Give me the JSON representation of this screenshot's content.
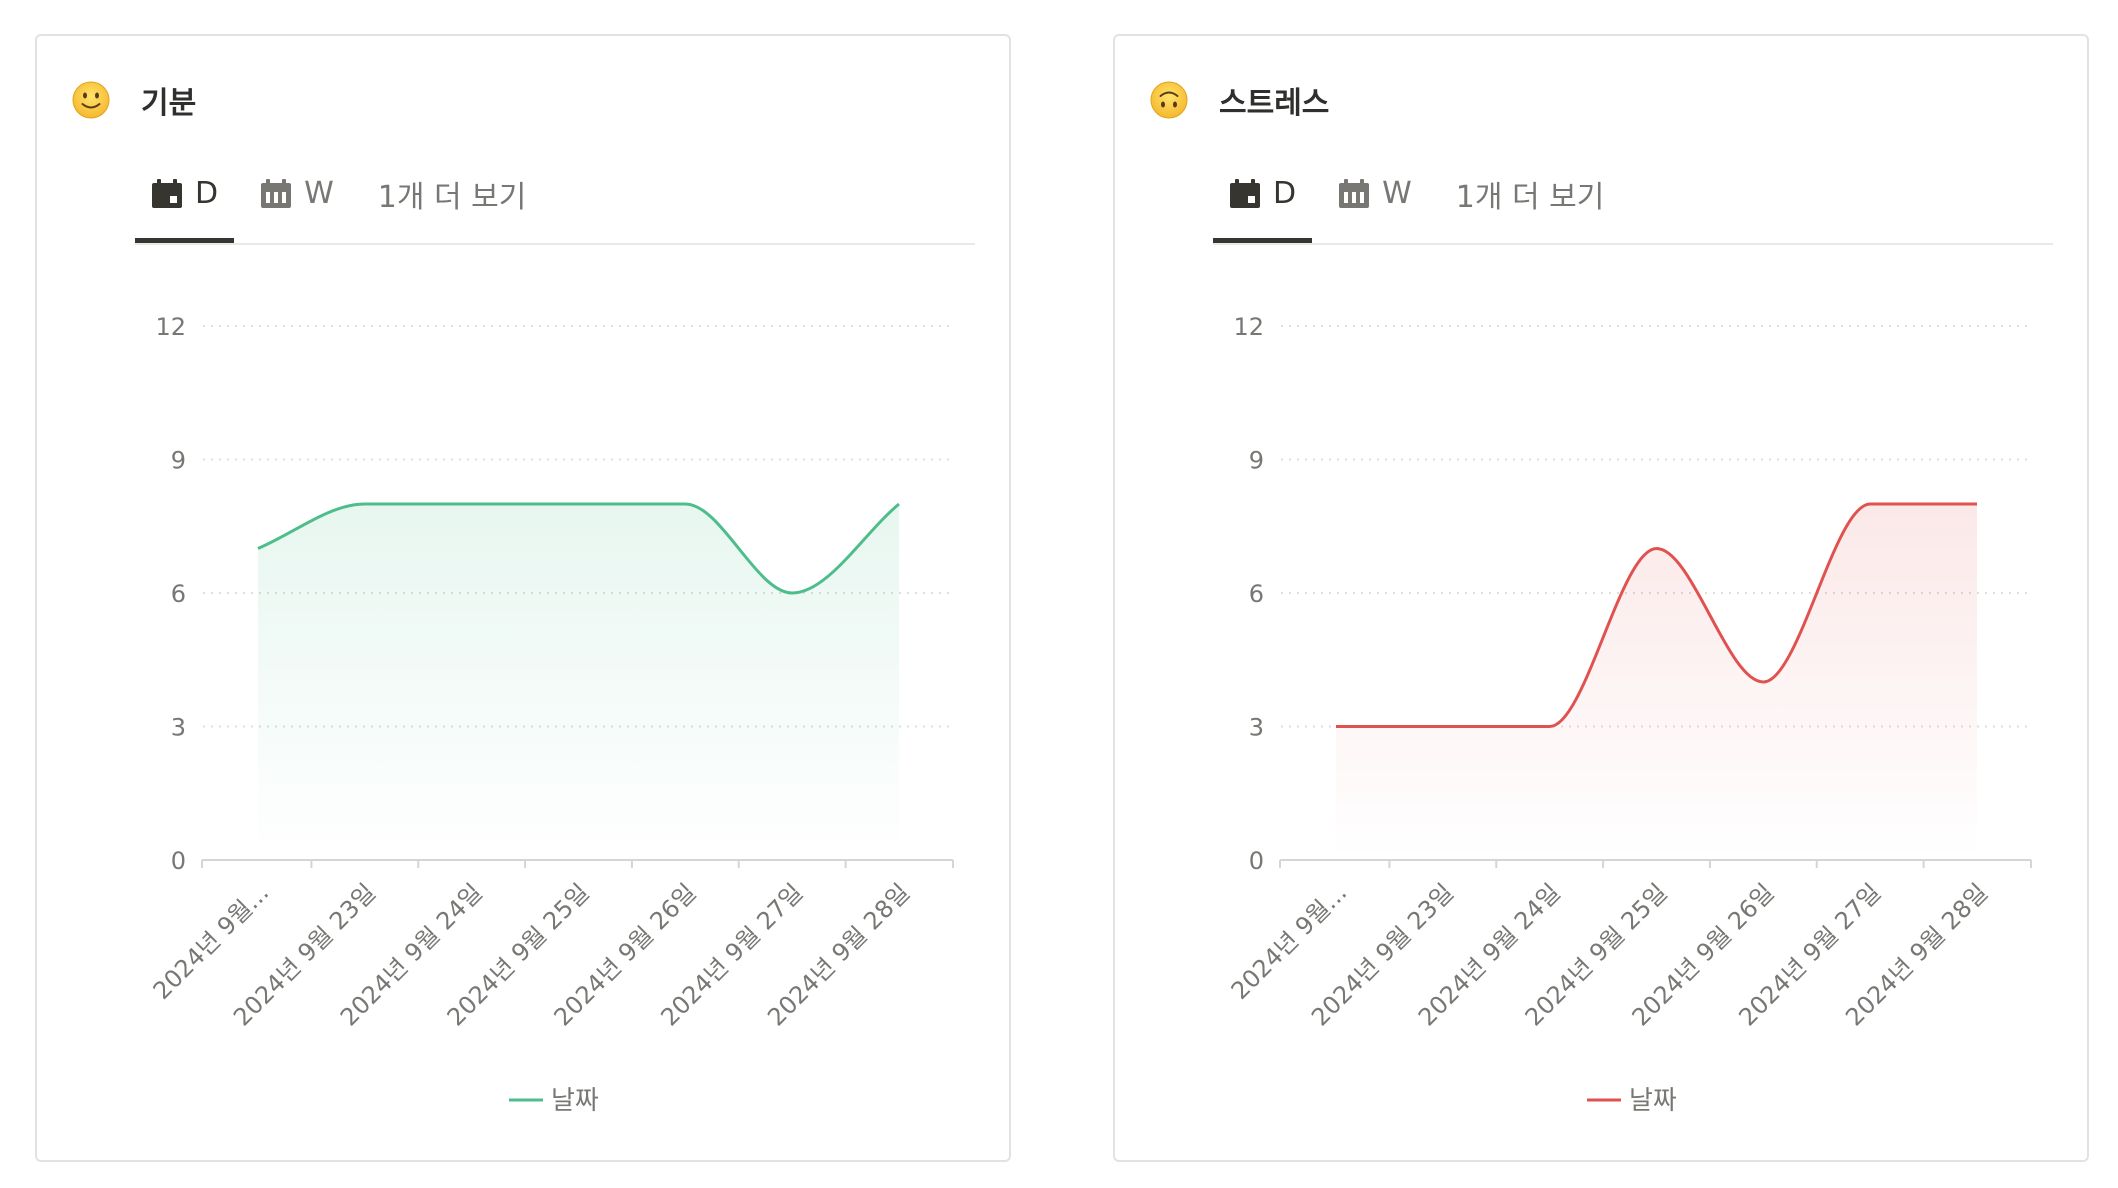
{
  "cards": [
    {
      "title": "기분",
      "emoji": "slightly-smiling-face",
      "tabs": {
        "day": "D",
        "week": "W",
        "more": "1개 더 보기"
      },
      "accent": "#4dbd8c",
      "chart_data": {
        "type": "area",
        "title": "",
        "xlabel": "",
        "ylabel": "",
        "ylim": [
          0,
          12
        ],
        "yticks": [
          "0",
          "3",
          "6",
          "9",
          "12"
        ],
        "grid": true,
        "legend_position": "bottom",
        "categories": [
          "2024년 9월...",
          "2024년 9월 23일",
          "2024년 9월 24일",
          "2024년 9월 25일",
          "2024년 9월 26일",
          "2024년 9월 27일",
          "2024년 9월 28일"
        ],
        "series": [
          {
            "name": "날짜",
            "color": "#4dbd8c",
            "values": [
              7,
              8,
              8,
              8,
              8,
              6,
              8
            ]
          }
        ]
      }
    },
    {
      "title": "스트레스",
      "emoji": "upside-down-face",
      "tabs": {
        "day": "D",
        "week": "W",
        "more": "1개 더 보기"
      },
      "accent": "#e0524f",
      "chart_data": {
        "type": "area",
        "title": "",
        "xlabel": "",
        "ylabel": "",
        "ylim": [
          0,
          12
        ],
        "yticks": [
          "0",
          "3",
          "6",
          "9",
          "12"
        ],
        "grid": true,
        "legend_position": "bottom",
        "categories": [
          "2024년 9월...",
          "2024년 9월 23일",
          "2024년 9월 24일",
          "2024년 9월 25일",
          "2024년 9월 26일",
          "2024년 9월 27일",
          "2024년 9월 28일"
        ],
        "series": [
          {
            "name": "날짜",
            "color": "#e0524f",
            "values": [
              3,
              3,
              3,
              7,
              4,
              8,
              8
            ]
          }
        ]
      }
    }
  ]
}
